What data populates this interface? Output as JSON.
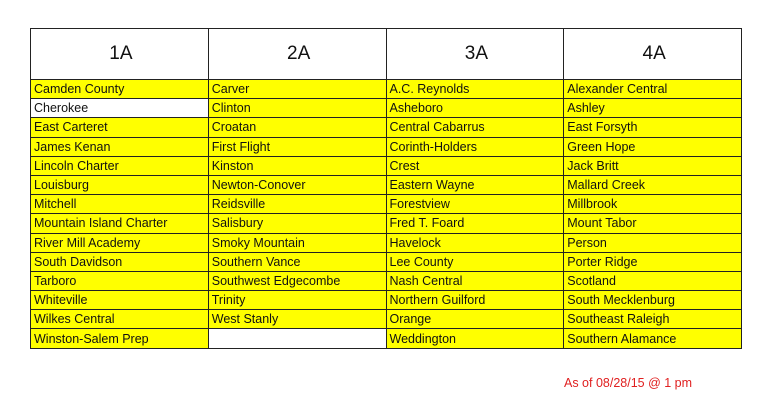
{
  "columns": [
    "1A",
    "2A",
    "3A",
    "4A"
  ],
  "rows": [
    [
      "Camden County",
      "Carver",
      "A.C. Reynolds",
      "Alexander Central"
    ],
    [
      "Cherokee",
      "Clinton",
      "Asheboro",
      "Ashley"
    ],
    [
      "East Carteret",
      "Croatan",
      "Central Cabarrus",
      "East Forsyth"
    ],
    [
      "James Kenan",
      "First Flight",
      "Corinth-Holders",
      "Green Hope"
    ],
    [
      "Lincoln Charter",
      "Kinston",
      "Crest",
      "Jack Britt"
    ],
    [
      "Louisburg",
      "Newton-Conover",
      "Eastern Wayne",
      "Mallard Creek"
    ],
    [
      "Mitchell",
      "Reidsville",
      "Forestview",
      "Millbrook"
    ],
    [
      "Mountain Island Charter",
      "Salisbury",
      "Fred T. Foard",
      "Mount Tabor"
    ],
    [
      "River Mill Academy",
      "Smoky Mountain",
      "Havelock",
      "Person"
    ],
    [
      "South Davidson",
      "Southern Vance",
      "Lee County",
      "Porter Ridge"
    ],
    [
      "Tarboro",
      "Southwest Edgecombe",
      "Nash Central",
      "Scotland"
    ],
    [
      "Whiteville",
      "Trinity",
      "Northern Guilford",
      "South Mecklenburg"
    ],
    [
      "Wilkes Central",
      "West Stanly",
      "Orange",
      "Southeast Raleigh"
    ],
    [
      "Winston-Salem Prep",
      "",
      "Weddington",
      "Southern Alamance"
    ]
  ],
  "unhighlighted_cells": [
    [
      1,
      0
    ],
    [
      13,
      1
    ]
  ],
  "colors": {
    "highlight": "#ffff00",
    "note": "#e02020"
  },
  "note": "As of 08/28/15 @ 1 pm"
}
